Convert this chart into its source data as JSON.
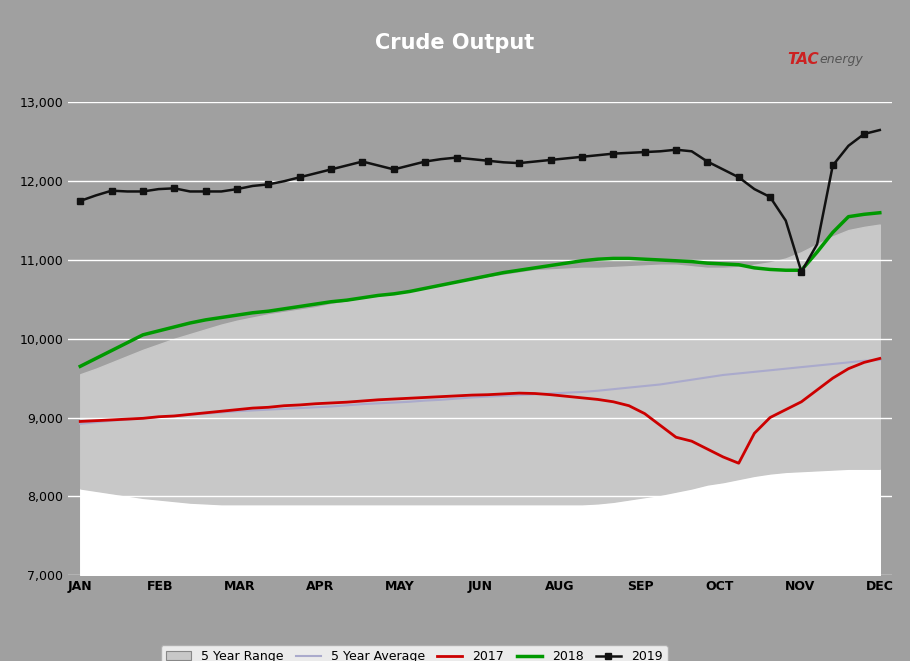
{
  "title": "Crude Output",
  "bg_color": "#a0a0a0",
  "plot_bg_color": "#a0a0a0",
  "blue_bar_color": "#1a5fb4",
  "ylim": [
    7000,
    13000
  ],
  "yticks": [
    7000,
    8000,
    9000,
    10000,
    11000,
    12000,
    13000
  ],
  "months": [
    "JAN",
    "FEB",
    "MAR",
    "APR",
    "MAY",
    "JUN",
    "AUG",
    "SEP",
    "OCT",
    "NOV",
    "DEC"
  ],
  "five_yr_range_color": "#c8c8c8",
  "five_yr_avg_color": "#aaaacc",
  "color_2017": "#cc0000",
  "color_2018": "#009900",
  "color_2019": "#111111",
  "white_fill_color": "#ffffff",
  "grid_color": "#ffffff",
  "x_min": 0,
  "x_max": 10,
  "n_weeks": 52
}
